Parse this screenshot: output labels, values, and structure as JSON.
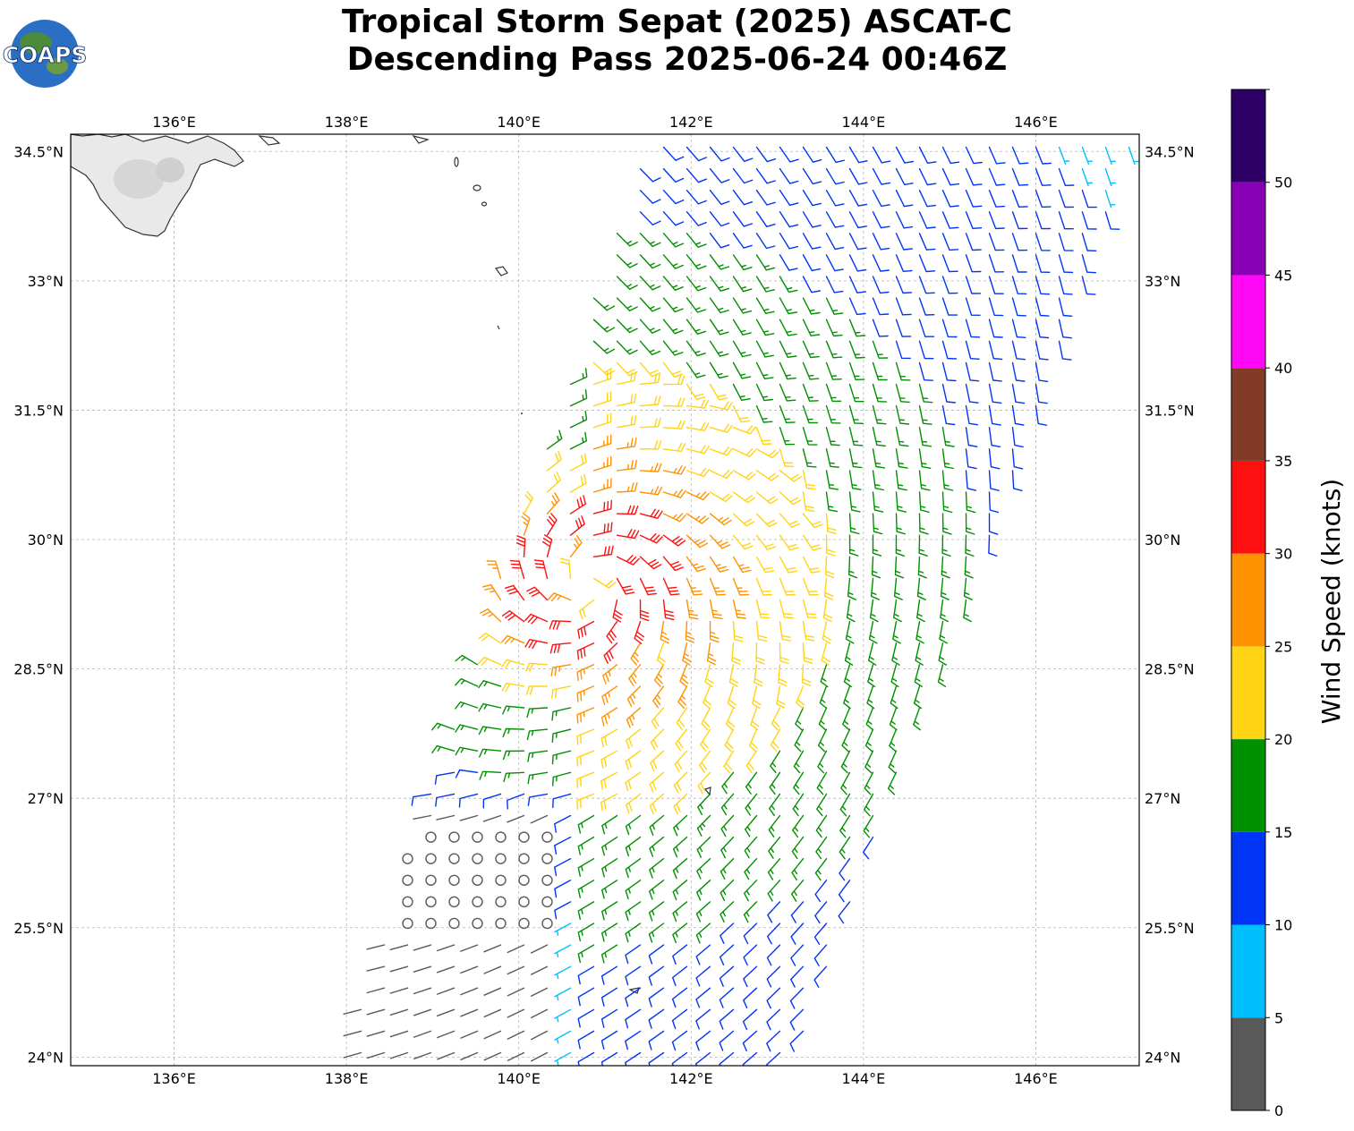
{
  "chart_data": {
    "type": "wind-barb-map",
    "title": "Tropical Storm Sepat (2025) ASCAT-C",
    "subtitle": "Descending Pass 2025-06-24 00:46Z",
    "logo_text": "COAPS",
    "lon_ticks": [
      "136°E",
      "138°E",
      "140°E",
      "142°E",
      "144°E",
      "146°E"
    ],
    "lat_ticks": [
      "34.5°N",
      "33°N",
      "31.5°N",
      "30°N",
      "28.5°N",
      "27°N",
      "25.5°N",
      "24°N"
    ],
    "lon_tick_values": [
      136,
      138,
      140,
      142,
      144,
      146
    ],
    "lat_tick_values": [
      34.5,
      33,
      31.5,
      30,
      28.5,
      27,
      25.5,
      24
    ],
    "lon_range": [
      134.8,
      147.2
    ],
    "lat_range": [
      23.9,
      34.7
    ],
    "grid": true,
    "swath": {
      "corners": [
        [
          141.5,
          34.7
        ],
        [
          147.2,
          34.7
        ],
        [
          143.2,
          23.9
        ],
        [
          137.9,
          23.9
        ]
      ]
    },
    "storm_center": {
      "lon": 140.8,
      "lat": 29.5,
      "max_wind_knots": 33
    },
    "calm_region": {
      "lon_min": 138.4,
      "lon_max": 140.6,
      "lat_min": 25.4,
      "lat_max": 26.6
    },
    "colorbar": {
      "label": "Wind Speed (knots)",
      "ticks": [
        "0",
        "5",
        "10",
        "15",
        "20",
        "25",
        "30",
        "35",
        "40",
        "45",
        "50"
      ],
      "bins": [
        {
          "min": 0,
          "max": 5,
          "color": "#595959"
        },
        {
          "min": 5,
          "max": 10,
          "color": "#00bfff"
        },
        {
          "min": 10,
          "max": 15,
          "color": "#0035f5"
        },
        {
          "min": 15,
          "max": 20,
          "color": "#009000"
        },
        {
          "min": 20,
          "max": 25,
          "color": "#ffd414"
        },
        {
          "min": 25,
          "max": 30,
          "color": "#ff9200"
        },
        {
          "min": 30,
          "max": 35,
          "color": "#ff1010"
        },
        {
          "min": 35,
          "max": 40,
          "color": "#813b27"
        },
        {
          "min": 40,
          "max": 45,
          "color": "#fe08f5"
        },
        {
          "min": 45,
          "max": 50,
          "color": "#8800b4"
        },
        {
          "min": 50,
          "max": 55,
          "color": "#2e0066"
        }
      ]
    }
  }
}
